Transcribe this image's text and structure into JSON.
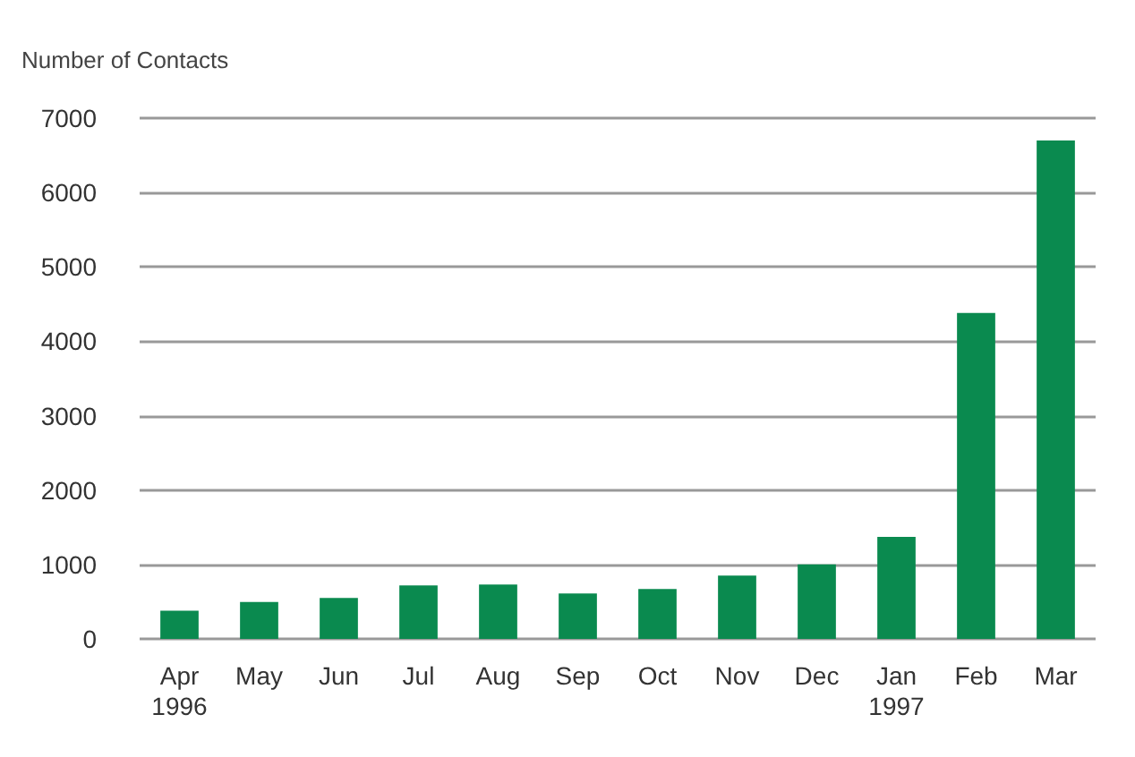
{
  "chart_data": {
    "type": "bar",
    "ylabel": "Number of Contacts",
    "categories": [
      "Apr\n1996",
      "May",
      "Jun",
      "Jul",
      "Aug",
      "Sep",
      "Oct",
      "Nov",
      "Dec",
      "Jan\n1997",
      "Feb",
      "Mar"
    ],
    "values": [
      380,
      495,
      550,
      720,
      730,
      610,
      670,
      850,
      1000,
      1370,
      4380,
      6700
    ],
    "color": "#0a8a4f",
    "ylim": [
      0,
      7000
    ],
    "yticks": [
      0,
      1000,
      2000,
      3000,
      4000,
      5000,
      6000,
      7000
    ],
    "grid": "y"
  }
}
